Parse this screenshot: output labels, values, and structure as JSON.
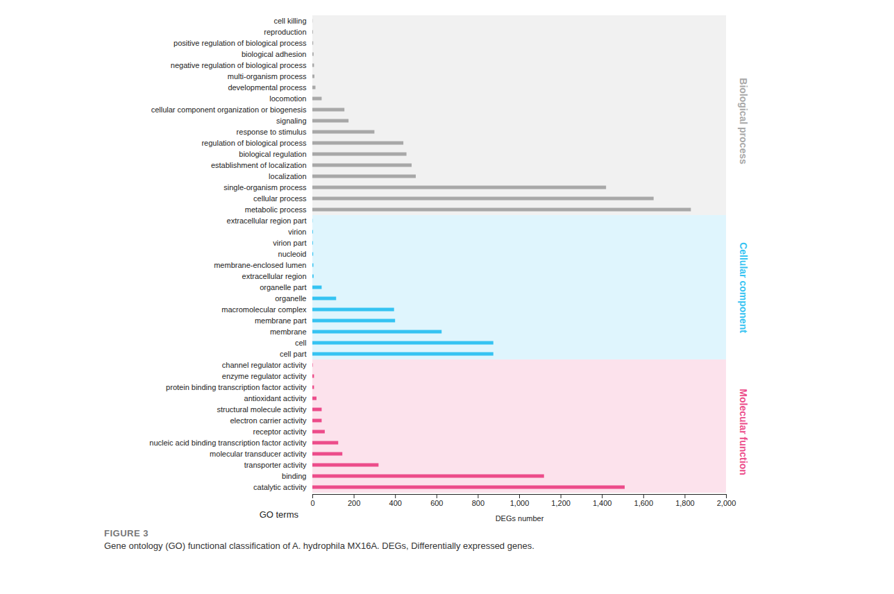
{
  "chart_data": {
    "type": "bar",
    "orientation": "horizontal",
    "title": "FIGURE 3",
    "caption": "Gene ontology (GO) functional classification of A. hydrophila MX16A. DEGs, Differentially expressed genes.",
    "x_label": "DEGs number",
    "y_label": "GO terms",
    "xlim": [
      0,
      2000
    ],
    "xticks": [
      0,
      200,
      400,
      600,
      800,
      1000,
      1200,
      1400,
      1600,
      1800,
      2000
    ],
    "series": [
      {
        "name": "Biological process",
        "color": "#a8a8a8",
        "categories": [
          "cell killing",
          "reproduction",
          "positive regulation of biological process",
          "biological adhesion",
          "negative regulation of biological process",
          "multi-organism process",
          "developmental process",
          "locomotion",
          "cellular component organization or biogenesis",
          "signaling",
          "response to stimulus",
          "regulation of biological process",
          "biological regulation",
          "establishment of localization",
          "localization",
          "single-organism process",
          "cellular process",
          "metabolic process"
        ],
        "values": [
          1,
          3,
          4,
          6,
          8,
          10,
          15,
          45,
          155,
          175,
          300,
          440,
          455,
          480,
          500,
          1420,
          1650,
          1830
        ]
      },
      {
        "name": "Cellular component",
        "color": "#35c3f2",
        "categories": [
          "extracellular region part",
          "virion",
          "virion part",
          "nucleoid",
          "membrane-enclosed lumen",
          "extracellular region",
          "organelle part",
          "organelle",
          "macromolecular complex",
          "membrane part",
          "membrane",
          "cell",
          "cell part"
        ],
        "values": [
          1,
          3,
          3,
          4,
          5,
          6,
          45,
          115,
          395,
          400,
          625,
          875,
          875
        ]
      },
      {
        "name": "Molecular function",
        "color": "#ec4c8a",
        "categories": [
          "channel regulator activity",
          "enzyme regulator activity",
          "protein binding transcription factor activity",
          "antioxidant activity",
          "structural molecule activity",
          "electron carrier activity",
          "receptor activity",
          "nucleic acid binding transcription factor activity",
          "molecular transducer activity",
          "transporter activity",
          "binding",
          "catalytic activity"
        ],
        "values": [
          2,
          8,
          8,
          20,
          45,
          45,
          60,
          125,
          145,
          320,
          1120,
          1510
        ]
      }
    ]
  }
}
